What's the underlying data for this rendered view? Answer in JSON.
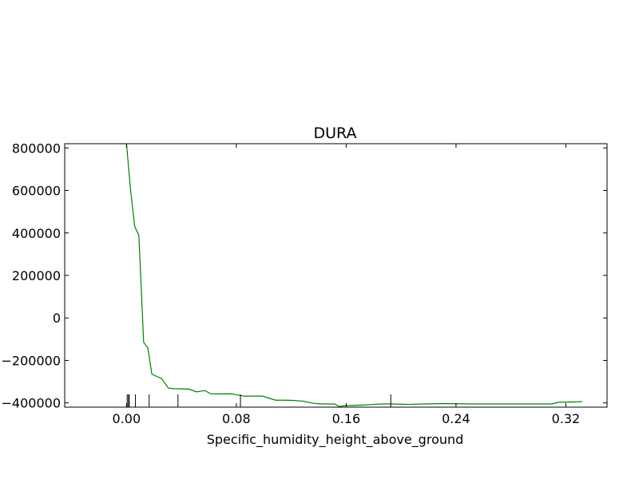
{
  "chart_data": {
    "type": "line",
    "title": "DURA",
    "xlabel": "Specific_humidity_height_above_ground",
    "ylabel": "",
    "xlim": [
      -0.045,
      0.35
    ],
    "ylim": [
      -420000,
      820000
    ],
    "xticks": [
      0.0,
      0.08,
      0.16,
      0.24,
      0.32
    ],
    "xtick_labels": [
      "0.00",
      "0.08",
      "0.16",
      "0.24",
      "0.32"
    ],
    "yticks": [
      800000,
      600000,
      400000,
      200000,
      0,
      -200000,
      -400000
    ],
    "ytick_labels": [
      "800000",
      "600000",
      "400000",
      "200000",
      "0",
      "−200000",
      "−400000"
    ],
    "grid": false,
    "series": [
      {
        "color": "#008000",
        "x": [
          0.0,
          0.003,
          0.006,
          0.009,
          0.0125,
          0.0155,
          0.0185,
          0.0255,
          0.0305,
          0.035,
          0.0455,
          0.051,
          0.057,
          0.0615,
          0.0665,
          0.076,
          0.0805,
          0.0855,
          0.099,
          0.1085,
          0.114,
          0.121,
          0.129,
          0.136,
          0.1425,
          0.1515,
          0.155,
          0.159,
          0.1635,
          0.1725,
          0.18,
          0.186,
          0.193,
          0.2055,
          0.2165,
          0.2325,
          0.252,
          0.27,
          0.29,
          0.31,
          0.3145,
          0.327,
          0.332
        ],
        "y": [
          820000,
          600000,
          430000,
          390000,
          -115000,
          -140000,
          -265000,
          -285000,
          -330000,
          -333000,
          -335000,
          -348000,
          -342000,
          -357000,
          -358000,
          -357000,
          -362000,
          -368000,
          -368000,
          -387000,
          -387000,
          -388000,
          -392000,
          -402000,
          -405000,
          -405000,
          -417000,
          -413000,
          -412000,
          -410000,
          -407000,
          -405000,
          -405000,
          -407000,
          -405000,
          -403000,
          -405000,
          -405000,
          -405000,
          -405000,
          -397000,
          -395000,
          -394000
        ]
      }
    ],
    "rug_x": [
      0.0005,
      0.0015,
      0.002,
      0.0065,
      0.0165,
      0.0375,
      0.083,
      0.1925
    ]
  }
}
